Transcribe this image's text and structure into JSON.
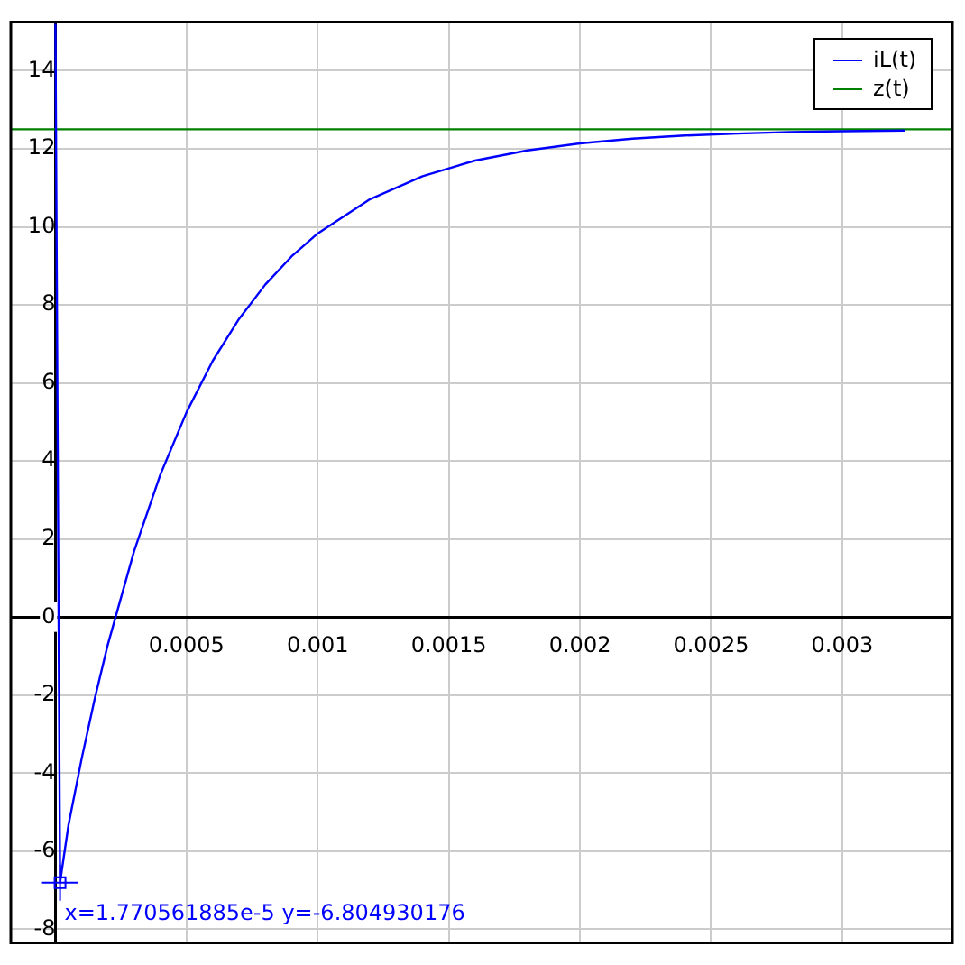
{
  "chart_data": {
    "type": "line",
    "xlim": [
      -0.00017,
      0.00342
    ],
    "ylim": [
      -8.35,
      15.25
    ],
    "xticks": [
      0.0005,
      0.001,
      0.0015,
      0.002,
      0.0025,
      0.003
    ],
    "yticks": [
      -8,
      -6,
      -4,
      -2,
      0,
      2,
      4,
      6,
      8,
      10,
      12,
      14
    ],
    "grid": true,
    "legend": "top right",
    "marker": "none",
    "line_style": "solid",
    "series": [
      {
        "name": "iL(t)",
        "color": "#0000ff",
        "x": [
          0,
          1.77e-05,
          5e-05,
          0.0001,
          0.00015,
          0.0002,
          0.0003,
          0.0004,
          0.0005,
          0.0006,
          0.0007,
          0.0008,
          0.0009,
          0.001,
          0.0012,
          0.0014,
          0.0016,
          0.0018,
          0.002,
          0.0022,
          0.0024,
          0.0026,
          0.0028,
          0.003,
          0.00324
        ],
        "values": [
          15.2,
          -6.8,
          -5.32,
          -3.63,
          -2.09,
          -0.7,
          1.69,
          3.65,
          5.25,
          6.57,
          7.64,
          8.52,
          9.24,
          9.83,
          10.71,
          11.3,
          11.7,
          11.96,
          12.14,
          12.26,
          12.34,
          12.39,
          12.43,
          12.45,
          12.47
        ]
      },
      {
        "name": "z(t)",
        "color": "#008000",
        "x": [
          -0.00017,
          0.00342
        ],
        "values": [
          12.5,
          12.5
        ]
      }
    ],
    "annotations": [
      {
        "text": "x=1.770561885e-5 y=-6.804930176",
        "x": 1.77e-05,
        "y": -6.804930176
      }
    ]
  }
}
